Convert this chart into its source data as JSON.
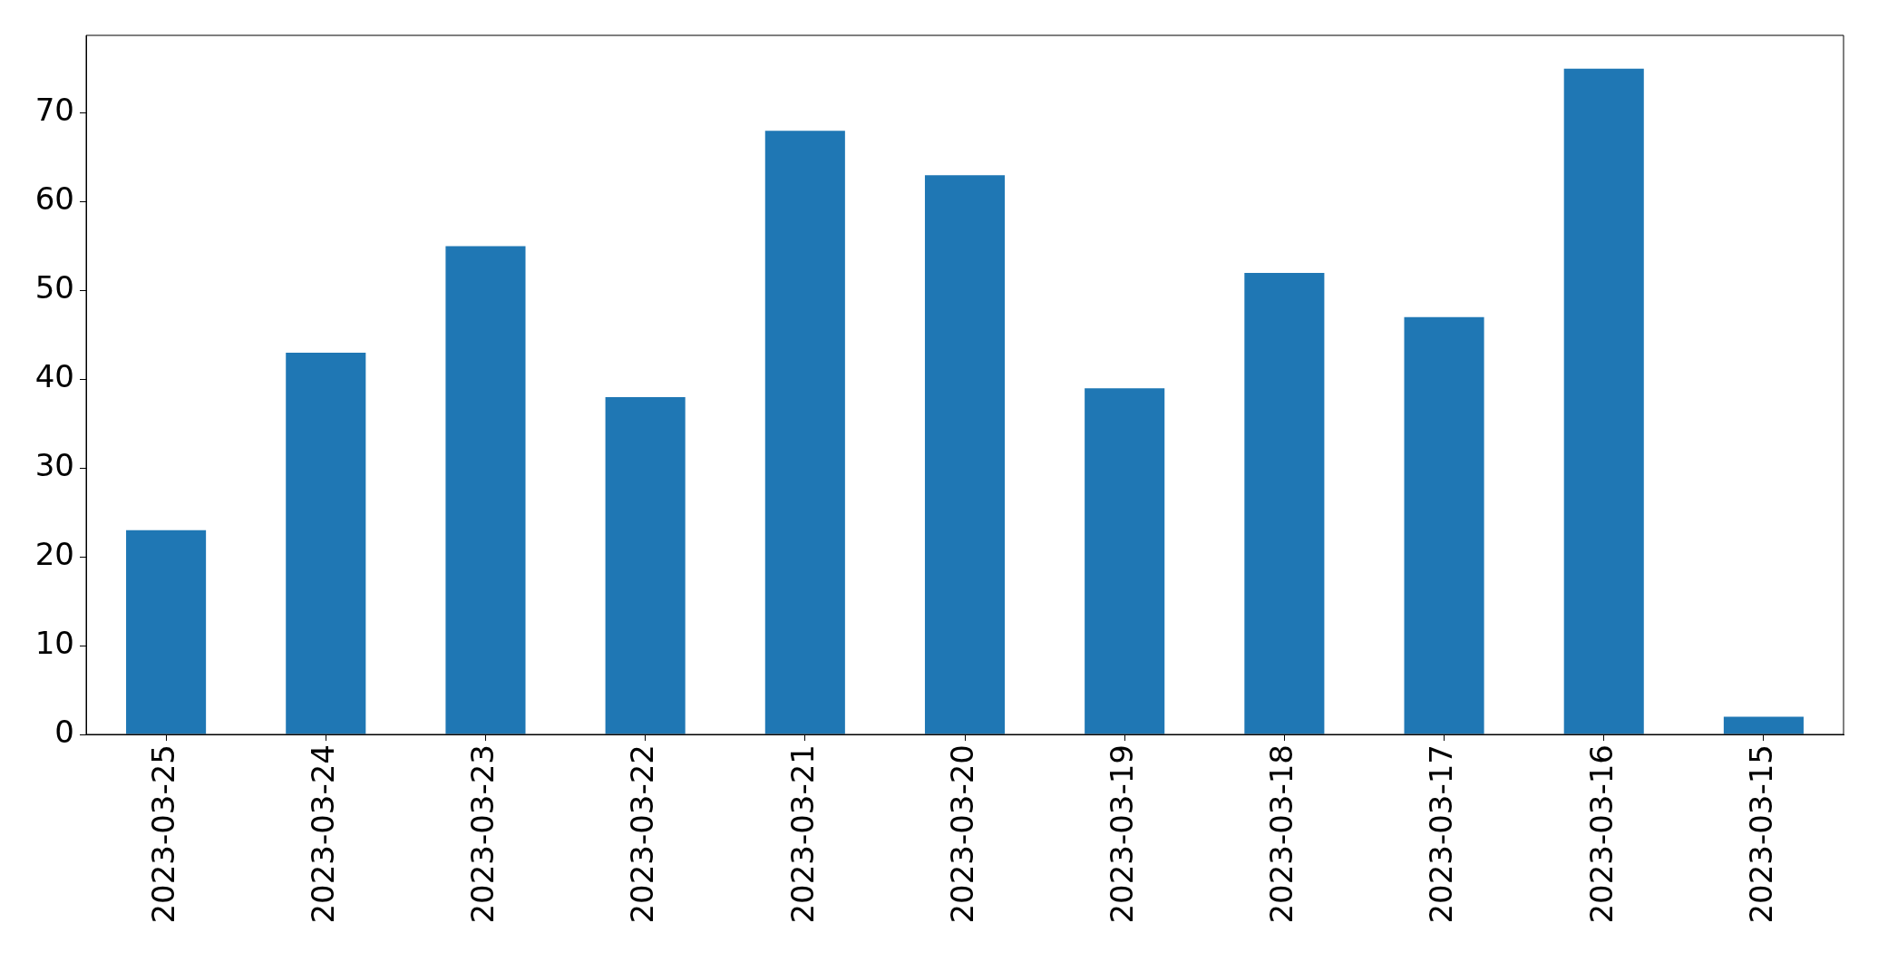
{
  "chart_data": {
    "type": "bar",
    "categories": [
      "2023-03-25",
      "2023-03-24",
      "2023-03-23",
      "2023-03-22",
      "2023-03-21",
      "2023-03-20",
      "2023-03-19",
      "2023-03-18",
      "2023-03-17",
      "2023-03-16",
      "2023-03-15"
    ],
    "values": [
      23,
      43,
      55,
      38,
      68,
      63,
      39,
      52,
      47,
      75,
      2
    ],
    "color": "#1f77b4",
    "ylim": [
      0,
      78.75
    ],
    "yticks": [
      0,
      10,
      20,
      30,
      40,
      50,
      60,
      70
    ],
    "grid": false,
    "legend": false
  }
}
